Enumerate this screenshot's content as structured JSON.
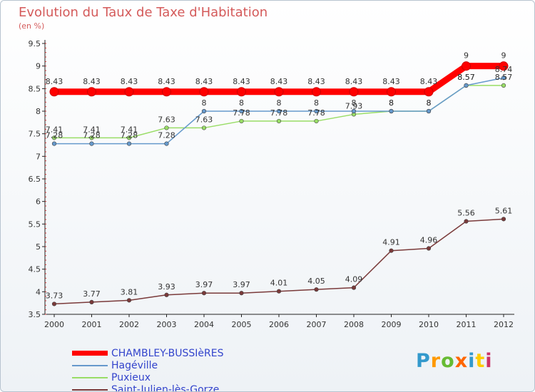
{
  "title": "Evolution du Taux de Taxe d'Habitation",
  "subtitle": "(en %)",
  "chart_data": {
    "type": "line",
    "title": "Evolution du Taux de Taxe d'Habitation",
    "ylabel": "(en %)",
    "ylim": [
      3.5,
      9.5
    ],
    "yticks": [
      "3.5",
      "4",
      "4.5",
      "5",
      "5.5",
      "6",
      "6.5",
      "7",
      "7.5",
      "8",
      "8.5",
      "9",
      "9.5"
    ],
    "x": [
      "2000",
      "2001",
      "2002",
      "2003",
      "2004",
      "2005",
      "2006",
      "2007",
      "2008",
      "2009",
      "2010",
      "2011",
      "2012"
    ],
    "legend_position": "bottom-left",
    "grid": false,
    "series": [
      {
        "name": "CHAMBLEY-BUSSIèRES",
        "color": "#ff0000",
        "values": [
          8.43,
          8.43,
          8.43,
          8.43,
          8.43,
          8.43,
          8.43,
          8.43,
          8.43,
          8.43,
          8.43,
          9,
          9
        ],
        "labels": [
          "8.43",
          "8.43",
          "8.43",
          "8.43",
          "8.43",
          "8.43",
          "8.43",
          "8.43",
          "8.43",
          "8.43",
          "8.43",
          "9",
          "9"
        ]
      },
      {
        "name": "Hagéville",
        "color": "#6699cc",
        "values": [
          7.28,
          7.28,
          7.28,
          7.28,
          8,
          8,
          8,
          8,
          8,
          8,
          8,
          8.57,
          8.74
        ],
        "labels": [
          "7.28",
          "7.28",
          "7.28",
          "7.28",
          "8",
          "8",
          "8",
          "8",
          "8",
          "8",
          "8",
          "8.57",
          "8.74"
        ]
      },
      {
        "name": "Puxieux",
        "color": "#99dd66",
        "values": [
          7.41,
          7.41,
          7.41,
          7.63,
          7.63,
          7.78,
          7.78,
          7.78,
          7.93,
          8,
          8,
          8.57,
          8.57
        ],
        "labels": [
          "7.41",
          "7.41",
          "7.41",
          "7.63",
          "7.63",
          "7.78",
          "7.78",
          "7.78",
          "7.93",
          "8",
          "8",
          "8.57",
          "8.57"
        ]
      },
      {
        "name": "Saint-Julien-lès-Gorze",
        "color": "#7a3a3a",
        "values": [
          3.73,
          3.77,
          3.81,
          3.93,
          3.97,
          3.97,
          4.01,
          4.05,
          4.09,
          4.91,
          4.96,
          5.56,
          5.61
        ],
        "labels": [
          "3.73",
          "3.77",
          "3.81",
          "3.93",
          "3.97",
          "3.97",
          "4.01",
          "4.05",
          "4.09",
          "4.91",
          "4.96",
          "5.56",
          "5.61"
        ]
      }
    ]
  },
  "logo": {
    "text": "Proxiti",
    "letters": [
      "P",
      "r",
      "o",
      "x",
      "i",
      "t",
      "i"
    ],
    "colors": [
      "#3399cc",
      "#ff9900",
      "#66bb33",
      "#ff6600",
      "#3399cc",
      "#ffcc00",
      "#cc3366"
    ]
  }
}
